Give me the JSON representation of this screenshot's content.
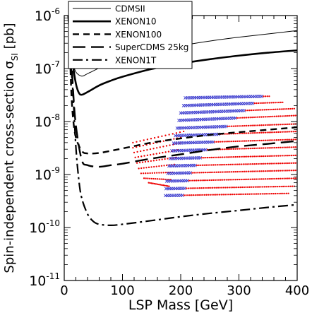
{
  "chart_data": {
    "type": "scatter",
    "title": "",
    "xlabel": "LSP Mass  [GeV]",
    "ylabel_main": "Spin-independent cross-section  σ",
    "ylabel_sub": "SI",
    "ylabel_unit": " [pb]",
    "xlim": [
      0,
      400
    ],
    "ylim_log10": [
      -11,
      -6
    ],
    "log_y": true,
    "grid": false,
    "legend_position": "top-left",
    "x_ticks": [
      {
        "value": 0,
        "label": "0"
      },
      {
        "value": 100,
        "label": "100"
      },
      {
        "value": 200,
        "label": "200"
      },
      {
        "value": 300,
        "label": "300"
      },
      {
        "value": 400,
        "label": "400"
      }
    ],
    "y_ticks": [
      {
        "exp": -11,
        "base": "10",
        "sup": "-11"
      },
      {
        "exp": -10,
        "base": "10",
        "sup": "-10"
      },
      {
        "exp": -9,
        "base": "10",
        "sup": "-9"
      },
      {
        "exp": -8,
        "base": "10",
        "sup": "-8"
      },
      {
        "exp": -7,
        "base": "10",
        "sup": "-7"
      },
      {
        "exp": -6,
        "base": "10",
        "sup": "-6"
      }
    ],
    "series": [
      {
        "name": "CDMSII",
        "style": "solid-thin",
        "color": "#000000",
        "x": [
          6,
          10,
          15,
          20,
          30,
          40,
          60,
          80,
          100,
          150,
          200,
          250,
          300,
          350,
          400
        ],
        "y": [
          1e-06,
          2.8e-07,
          1.3e-07,
          8.6e-08,
          7.2e-08,
          8e-08,
          1.02e-07,
          1.27e-07,
          1.53e-07,
          2.1e-07,
          2.7e-07,
          3.3e-07,
          3.9e-07,
          4.5e-07,
          5.2e-07
        ]
      },
      {
        "name": "XENON10",
        "style": "solid-thick",
        "color": "#000000",
        "x": [
          8.5,
          10,
          15,
          20,
          25,
          30,
          40,
          60,
          80,
          100,
          150,
          200,
          250,
          300,
          350,
          400
        ],
        "y": [
          1e-06,
          5e-07,
          1.2e-07,
          5.2e-08,
          3.5e-08,
          3.2e-08,
          3.6e-08,
          4.8e-08,
          5.9e-08,
          7e-08,
          9.8e-08,
          1.24e-07,
          1.5e-07,
          1.75e-07,
          1.99e-07,
          2.2e-07
        ]
      },
      {
        "name": "XENON100",
        "style": "short-dash",
        "color": "#000000",
        "x": [
          9,
          10,
          12,
          15,
          20,
          30,
          40,
          60,
          80,
          100,
          150,
          200,
          250,
          300,
          350,
          400
        ],
        "y": [
          1e-06,
          2e-07,
          4e-08,
          1.2e-08,
          5e-09,
          2.8e-09,
          2.5e-09,
          2.55e-09,
          2.8e-09,
          3.1e-09,
          4e-09,
          4.8e-09,
          5.6e-09,
          6.3e-09,
          7e-09,
          7.8e-09
        ]
      },
      {
        "name": "SuperCDMS 25kg",
        "style": "long-dash",
        "color": "#000000",
        "x": [
          10,
          12,
          15,
          20,
          30,
          40,
          60,
          80,
          100,
          150,
          200,
          250,
          300,
          350,
          400
        ],
        "y": [
          1e-06,
          2.3e-07,
          4.3e-08,
          8.5e-09,
          1.9e-09,
          1.5e-09,
          1.4e-09,
          1.5e-09,
          1.6e-09,
          2e-09,
          2.4e-09,
          2.9e-09,
          3.4e-09,
          3.8e-09,
          4.3e-09
        ]
      },
      {
        "name": "XENON1T",
        "style": "dash-dot",
        "color": "#000000",
        "x": [
          12,
          15,
          20,
          25,
          30,
          40,
          50,
          60,
          80,
          100,
          150,
          200,
          250,
          300,
          350,
          400
        ],
        "y": [
          1e-07,
          3.5e-08,
          3.3e-09,
          8e-10,
          3.6e-10,
          1.8e-10,
          1.3e-10,
          1.15e-10,
          1.1e-10,
          1.15e-10,
          1.35e-10,
          1.6e-10,
          1.85e-10,
          2.1e-10,
          2.4e-10,
          2.7e-10
        ]
      }
    ],
    "point_bands": {
      "blue_color": "#3333cc",
      "red_color": "#ee0000",
      "marker_blue": "x",
      "marker_red": "dot",
      "bands": [
        {
          "x_start": 208,
          "y_start": 2.8e-08,
          "x_split": 340,
          "x_end": 352,
          "y_end": 3e-08
        },
        {
          "x_start": 205,
          "y_start": 2e-08,
          "x_split": 325,
          "x_end": 375,
          "y_end": 2.3e-08
        },
        {
          "x_start": 200,
          "y_start": 1.45e-08,
          "x_split": 310,
          "x_end": 395,
          "y_end": 1.75e-08
        },
        {
          "x_start": 197,
          "y_start": 1.05e-08,
          "x_split": 295,
          "x_end": 400,
          "y_end": 1.3e-08
        },
        {
          "x_start": 194,
          "y_start": 7.5e-09,
          "x_split": 280,
          "x_end": 400,
          "y_end": 9e-09
        },
        {
          "x_start": 191,
          "y_start": 5.4e-09,
          "x_split": 268,
          "x_end": 400,
          "y_end": 6.5e-09
        },
        {
          "x_start": 188,
          "y_start": 3.9e-09,
          "x_split": 256,
          "x_end": 400,
          "y_end": 4.6e-09
        },
        {
          "x_start": 185,
          "y_start": 2.8e-09,
          "x_split": 245,
          "x_end": 400,
          "y_end": 3.3e-09
        },
        {
          "x_start": 182,
          "y_start": 2e-09,
          "x_split": 235,
          "x_end": 400,
          "y_end": 2.3e-09
        },
        {
          "x_start": 180,
          "y_start": 1.45e-09,
          "x_split": 225,
          "x_end": 400,
          "y_end": 1.65e-09
        },
        {
          "x_start": 178,
          "y_start": 1.05e-09,
          "x_split": 218,
          "x_end": 400,
          "y_end": 1.2e-09
        },
        {
          "x_start": 176,
          "y_start": 7.5e-10,
          "x_split": 212,
          "x_end": 400,
          "y_end": 8.5e-10
        },
        {
          "x_start": 175,
          "y_start": 5.4e-10,
          "x_split": 208,
          "x_end": 395,
          "y_end": 6e-10
        },
        {
          "x_start": 174,
          "y_start": 4e-10,
          "x_split": 205,
          "x_end": 385,
          "y_end": 4.4e-10
        }
      ],
      "red_fan": [
        {
          "x_start": 118,
          "y_start": 4e-09,
          "x_end": 205,
          "y_end": 6.5e-09
        },
        {
          "x_start": 118,
          "y_start": 3.2e-09,
          "x_end": 200,
          "y_end": 5e-09
        },
        {
          "x_start": 120,
          "y_start": 2.6e-09,
          "x_end": 198,
          "y_end": 3.9e-09
        },
        {
          "x_start": 122,
          "y_start": 2.1e-09,
          "x_end": 195,
          "y_end": 2.9e-09
        },
        {
          "x_start": 125,
          "y_start": 1.65e-09,
          "x_end": 192,
          "y_end": 2.1e-09
        },
        {
          "x_start": 128,
          "y_start": 1.3e-09,
          "x_end": 189,
          "y_end": 1.55e-09
        },
        {
          "x_start": 132,
          "y_start": 1.05e-09,
          "x_end": 186,
          "y_end": 1.1e-09
        },
        {
          "x_start": 137,
          "y_start": 8.5e-10,
          "x_end": 183,
          "y_end": 8e-10
        },
        {
          "x_start": 145,
          "y_start": 7e-10,
          "x_end": 180,
          "y_end": 6e-10
        }
      ]
    }
  }
}
